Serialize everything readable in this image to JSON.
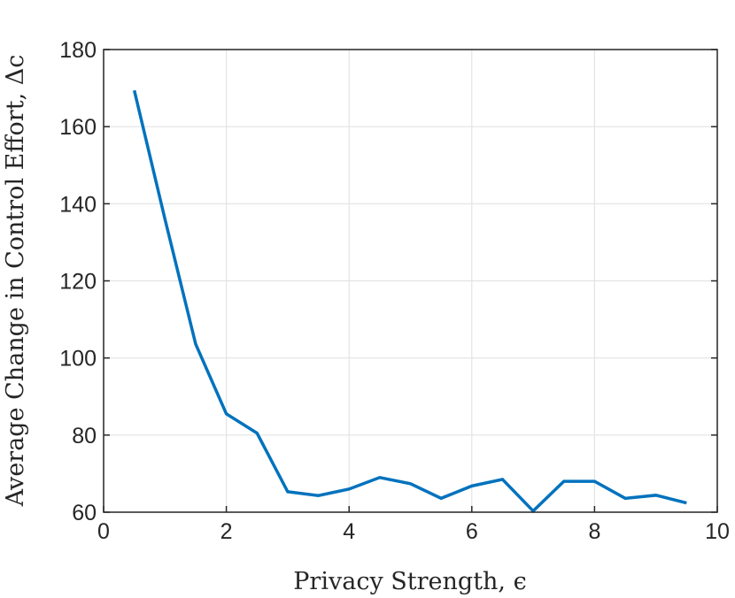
{
  "chart_data": {
    "type": "line",
    "title": "",
    "xlabel": "Privacy Strength, ϵ",
    "ylabel": "Average Change in Control Effort, Δc",
    "xlim": [
      0,
      10
    ],
    "ylim": [
      60,
      180
    ],
    "xticks": [
      "0",
      "2",
      "4",
      "6",
      "8",
      "10"
    ],
    "yticks": [
      "60",
      "80",
      "100",
      "120",
      "140",
      "160",
      "180"
    ],
    "grid": true,
    "series": [
      {
        "color": "#0072BD",
        "x": [
          0.5,
          1.0,
          1.5,
          2.0,
          2.5,
          3.0,
          3.5,
          4.0,
          4.5,
          5.0,
          5.5,
          6.0,
          6.5,
          7.0,
          7.5,
          8.0,
          8.5,
          9.0,
          9.5
        ],
        "y": [
          169.4,
          136.0,
          103.6,
          85.5,
          80.5,
          65.3,
          64.3,
          66.0,
          69.0,
          67.4,
          63.6,
          66.8,
          68.5,
          60.3,
          68.0,
          68.0,
          63.6,
          64.4,
          62.4
        ]
      }
    ]
  }
}
